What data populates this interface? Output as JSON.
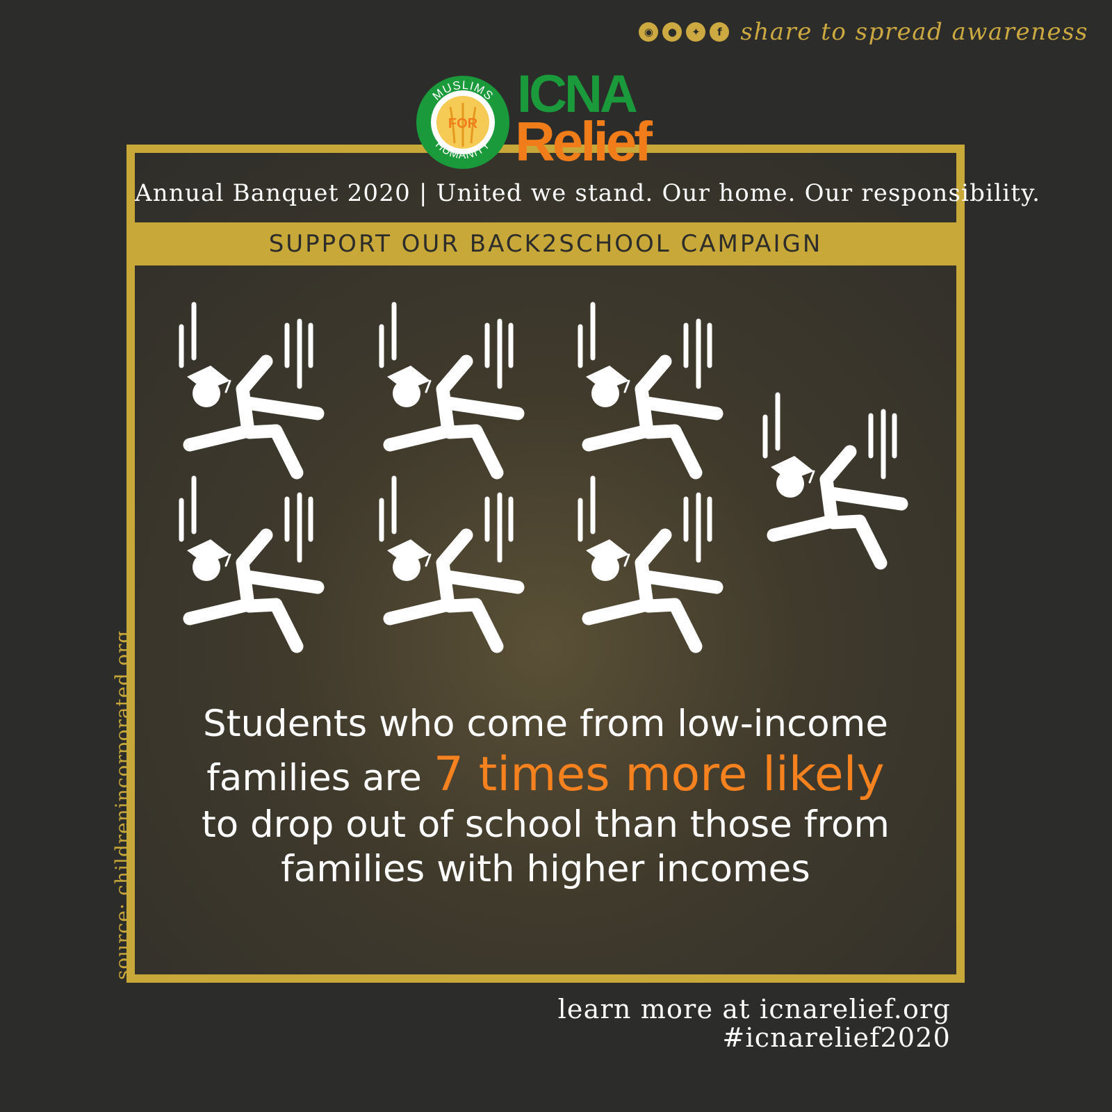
{
  "share": {
    "icons": [
      "instagram-icon",
      "snapchat-icon",
      "twitter-icon",
      "facebook-icon"
    ],
    "text": "share to spread awareness"
  },
  "logo": {
    "seal_top": "MUSLIMS",
    "seal_middle": "FOR",
    "seal_bottom": "HUMANITY",
    "word1": "ICNA",
    "word2": "Relief"
  },
  "header": {
    "subtitle": "Annual Banquet 2020 | United we stand. Our home. Our responsibility.",
    "campaign": "SUPPORT OUR BACK2SCHOOL CAMPAIGN"
  },
  "statement": {
    "line1": "Students who come from low-income",
    "line2_prefix": "families are ",
    "highlight": "7 times more likely",
    "line3": "to drop out of school than those from",
    "line4": "families with higher incomes"
  },
  "source": "source: childrenincorporated.org",
  "footer": {
    "link": "learn more at icnarelief.org",
    "hashtag": "#icnarelief2020"
  },
  "colors": {
    "background": "#2c2c2a",
    "gold": "#c9a83a",
    "orange": "#f5821f",
    "green": "#1a9a3a",
    "text": "#ffffff"
  },
  "figures": {
    "icon": "falling-student-icon",
    "count": 7
  }
}
